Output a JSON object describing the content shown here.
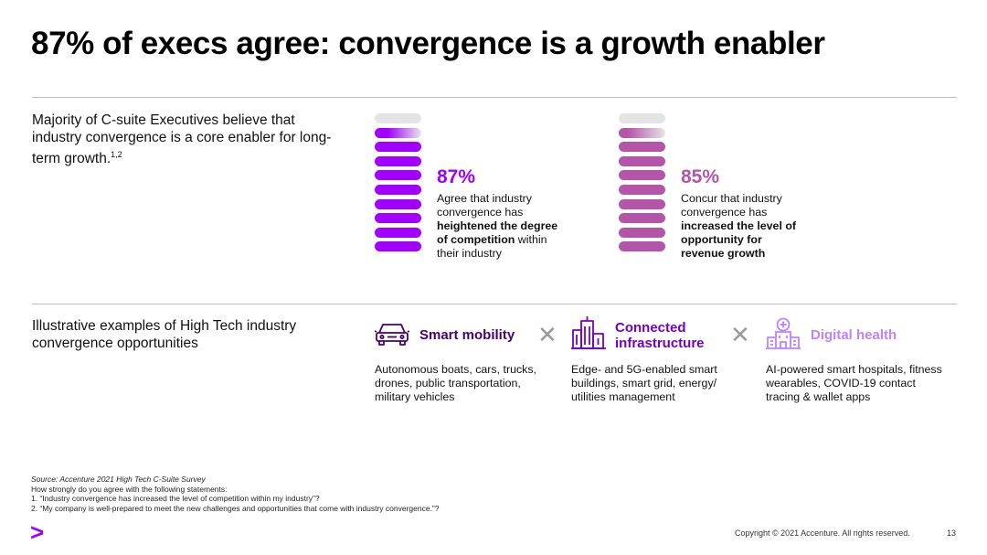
{
  "title": "87% of execs agree: convergence is a growth enabler",
  "intro": {
    "text": "Majority of C-suite Executives believe that industry convergence is a core enabler for long-term growth.",
    "sup": "1,2"
  },
  "stats": [
    {
      "percent": "87%",
      "value": 87,
      "color": "#a100ff",
      "line1": "Agree that industry",
      "line2": "convergence has",
      "bold1": "heightened the degree",
      "bold2": "of competition",
      "tail2": " within",
      "line5": "their industry"
    },
    {
      "percent": "85%",
      "value": 85,
      "color": "#b455aa",
      "line1": "Concur that industry",
      "line2": "convergence has",
      "bold1": "increased the level of",
      "bold2": "opportunity for",
      "bold3": "revenue growth"
    }
  ],
  "examples_intro": "Illustrative examples of High Tech industry convergence opportunities",
  "examples": [
    {
      "icon": "car-icon",
      "title": "Smart mobility",
      "color": "#460073",
      "desc": "Autonomous boats, cars, trucks, drones, public transportation, military vehicles"
    },
    {
      "icon": "buildings-icon",
      "title_line1": "Connected",
      "title_line2": "infrastructure",
      "color": "#7500c0",
      "desc": "Edge- and 5G-enabled smart buildings, smart grid, energy/ utilities management"
    },
    {
      "icon": "hospital-icon",
      "title": "Digital health",
      "color": "#be82ff",
      "desc": "AI-powered smart hospitals, fitness wearables, COVID-19 contact tracing & wallet apps"
    }
  ],
  "cross_symbol": "✕",
  "footnotes": {
    "source": "Source: Accenture 2021 High Tech C-Suite Survey",
    "question": "How strongly do you agree with the following statements:",
    "q1": "1. “Industry convergence has increased the level of competition within my industry”?",
    "q2": "2. “My company is well-prepared to meet the new challenges and opportunities that come with industry convergence.”?"
  },
  "copyright": "Copyright © 2021 Accenture. All rights reserved.",
  "page_number": "13",
  "logo_symbol": ">"
}
